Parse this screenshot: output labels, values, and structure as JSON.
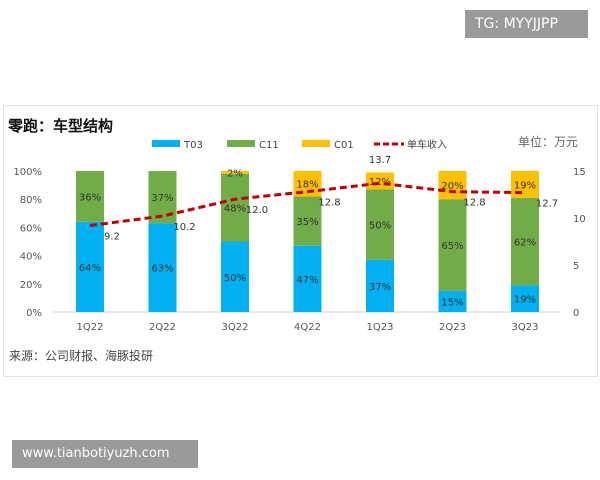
{
  "badge_top": "TG: MYYJJPP",
  "badge_bottom": "www.tianbotiyuzh.com",
  "chart_data": {
    "type": "bar",
    "stacked": true,
    "title": "零跑：车型结构",
    "unit_label": "单位：万元",
    "source": "来源：公司财报、海豚投研",
    "categories": [
      "1Q22",
      "2Q22",
      "3Q22",
      "4Q22",
      "1Q23",
      "2Q23",
      "3Q23"
    ],
    "series": [
      {
        "name": "T03",
        "color": "#00b0f0",
        "values": [
          64,
          63,
          50,
          47,
          37,
          15,
          19
        ]
      },
      {
        "name": "C11",
        "color": "#70ad47",
        "values": [
          36,
          37,
          48,
          35,
          50,
          65,
          62
        ]
      },
      {
        "name": "C01",
        "color": "#ffc000",
        "values": [
          0,
          0,
          2,
          18,
          12,
          20,
          19
        ]
      }
    ],
    "line_series": {
      "name": "单车收入",
      "color": "#c00000",
      "axis": "right",
      "values": [
        9.2,
        10.2,
        12.0,
        12.8,
        13.7,
        12.8,
        12.7
      ]
    },
    "left_axis": {
      "ylim": [
        0,
        100
      ],
      "ticks": [
        "0%",
        "20%",
        "40%",
        "60%",
        "80%",
        "100%"
      ]
    },
    "right_axis": {
      "ylim": [
        0,
        15
      ],
      "ticks": [
        "0",
        "5",
        "10",
        "15"
      ]
    },
    "legend_placement": "top",
    "grid": false
  }
}
